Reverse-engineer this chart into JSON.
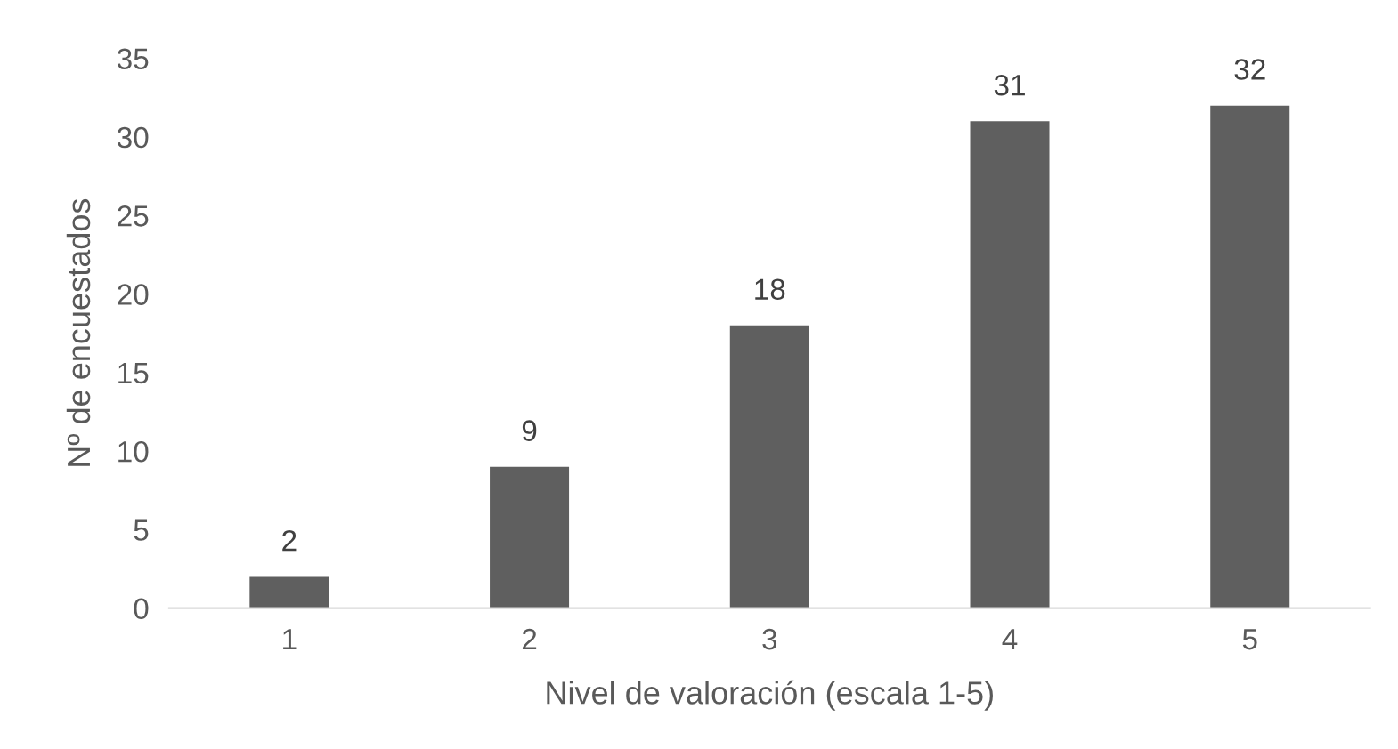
{
  "chart_data": {
    "type": "bar",
    "xlabel": "Nivel de valoración (escala 1-5)",
    "ylabel": "Nº de encuestados",
    "categories": [
      "1",
      "2",
      "3",
      "4",
      "5"
    ],
    "values": [
      2,
      9,
      18,
      31,
      32
    ],
    "color": "#5f5f5f",
    "ylim": [
      0,
      35
    ],
    "yticks": [
      0,
      5,
      10,
      15,
      20,
      25,
      30,
      35
    ],
    "grid": false,
    "data_labels": true
  }
}
